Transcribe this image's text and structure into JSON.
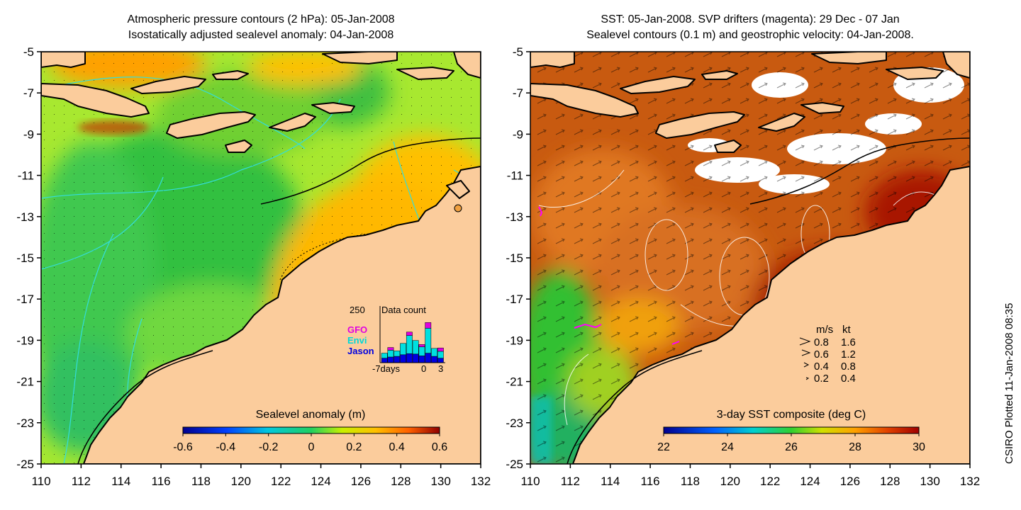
{
  "left_panel": {
    "title_line1": "Atmospheric pressure contours (2 hPa): 05-Jan-2008",
    "title_line2": "Isostatically adjusted sealevel anomaly: 04-Jan-2008",
    "colorbar_label": "Sealevel anomaly (m)",
    "colorbar_ticks": [
      "-0.6",
      "-0.4",
      "-0.2",
      "0",
      "0.2",
      "0.4",
      "0.6"
    ],
    "inset": {
      "max_label": "250",
      "title": "Data count",
      "legend": [
        {
          "label": "GFO",
          "color": "#e000e0"
        },
        {
          "label": "Envi",
          "color": "#00e0e0"
        },
        {
          "label": "Jason",
          "color": "#0000e0"
        }
      ],
      "x_labels": [
        "-7days",
        "0",
        "3"
      ],
      "counts": [
        {
          "jason": 20,
          "envi": 22,
          "gfo": 0
        },
        {
          "jason": 25,
          "envi": 30,
          "gfo": 12
        },
        {
          "jason": 28,
          "envi": 24,
          "gfo": 0
        },
        {
          "jason": 35,
          "envi": 50,
          "gfo": 0
        },
        {
          "jason": 40,
          "envi": 80,
          "gfo": 15
        },
        {
          "jason": 38,
          "envi": 60,
          "gfo": 0
        },
        {
          "jason": 30,
          "envi": 40,
          "gfo": 10
        },
        {
          "jason": 42,
          "envi": 110,
          "gfo": 25
        },
        {
          "jason": 28,
          "envi": 35,
          "gfo": 0
        },
        {
          "jason": 20,
          "envi": 30,
          "gfo": 15
        }
      ]
    }
  },
  "right_panel": {
    "title_line1": "SST: 05-Jan-2008. SVP drifters (magenta): 29 Dec - 07 Jan",
    "title_line2": "Sealevel contours (0.1 m) and geostrophic velocity: 04-Jan-2008.",
    "colorbar_label": "3-day SST composite (deg C)",
    "colorbar_ticks": [
      "22",
      "24",
      "26",
      "28",
      "30"
    ],
    "velocity_legend": {
      "header_ms": "m/s",
      "header_kt": "kt",
      "rows": [
        {
          "ms": "0.8",
          "kt": "1.6"
        },
        {
          "ms": "0.6",
          "kt": "1.2"
        },
        {
          "ms": "0.4",
          "kt": "0.8"
        },
        {
          "ms": "0.2",
          "kt": "0.4"
        }
      ]
    }
  },
  "axes": {
    "lon_ticks": [
      "110",
      "112",
      "114",
      "116",
      "118",
      "120",
      "122",
      "124",
      "126",
      "128",
      "130",
      "132"
    ],
    "lat_ticks": [
      "-5",
      "-7",
      "-9",
      "-11",
      "-13",
      "-15",
      "-17",
      "-19",
      "-21",
      "-23",
      "-25"
    ],
    "lon_range": [
      110,
      132
    ],
    "lat_range": [
      -25,
      -5
    ]
  },
  "colors": {
    "land": "#fbcc9c",
    "coast": "#000000",
    "pressure_contour": "#33dddd",
    "sealevel_contour": "#ffffff",
    "drifter": "#ff00ff"
  },
  "credit": "CSIRO Plotted 11-Jan-2008 08:35"
}
